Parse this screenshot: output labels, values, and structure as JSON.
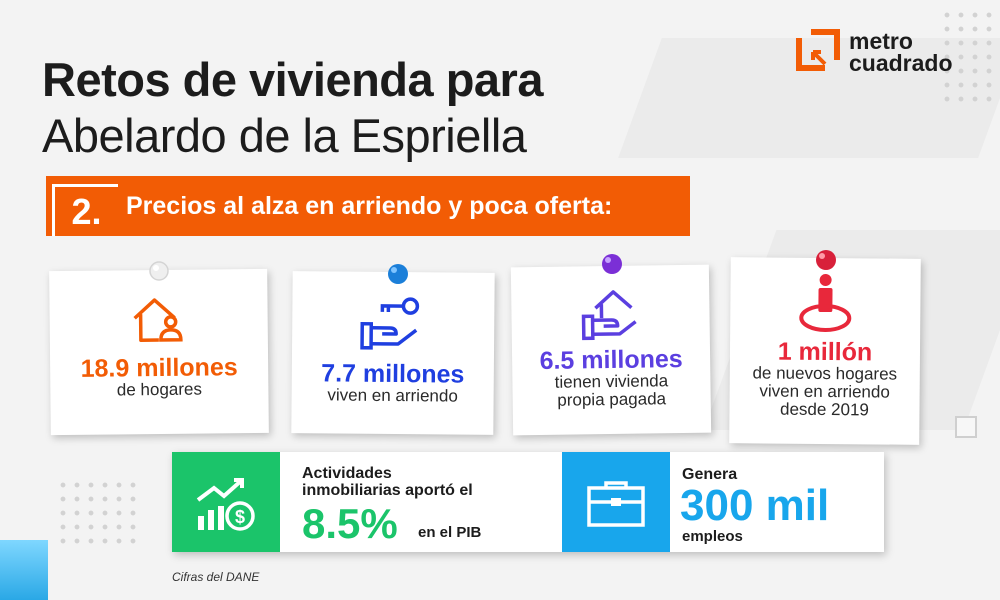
{
  "title": {
    "line1": "Retos de vivienda para",
    "line2": "Abelardo de la Espriella"
  },
  "logo": {
    "line1": "metro",
    "line2": "cuadrado"
  },
  "banner": {
    "number": "2.",
    "text": "Precios al alza en arriendo y poca oferta:"
  },
  "cards": [
    {
      "value": "18.9 millones",
      "desc": [
        "de hogares"
      ],
      "color": "#f25c05",
      "pin_color": "#e9e9e9",
      "icon": "house-person-icon"
    },
    {
      "value": "7.7 millones",
      "desc": [
        "viven en arriendo"
      ],
      "color": "#1f3fe0",
      "pin_color": "#1b7fd9",
      "icon": "hand-key-icon"
    },
    {
      "value": "6.5 millones",
      "desc": [
        "tienen vivienda",
        "propia pagada"
      ],
      "color": "#5b3fe0",
      "pin_color": "#7b2fd6",
      "icon": "hand-house-icon"
    },
    {
      "value": "1 millón",
      "desc": [
        "de nuevos hogares",
        "viven en arriendo",
        "desde 2019"
      ],
      "color": "#e8283b",
      "pin_color": "#d8203a",
      "icon": "person-location-icon"
    }
  ],
  "stats": {
    "pib": {
      "label_line1": "Actividades",
      "label_line2": "inmobiliarias aportó el",
      "value": "8.5%",
      "suffix": "en el PIB",
      "color": "#1bc46a",
      "icon": "growth-chart-icon"
    },
    "empleos": {
      "label": "Genera",
      "value": "300 mil",
      "suffix": "empleos",
      "color": "#18a6ec",
      "icon": "briefcase-icon"
    }
  },
  "source": "Cifras del DANE"
}
